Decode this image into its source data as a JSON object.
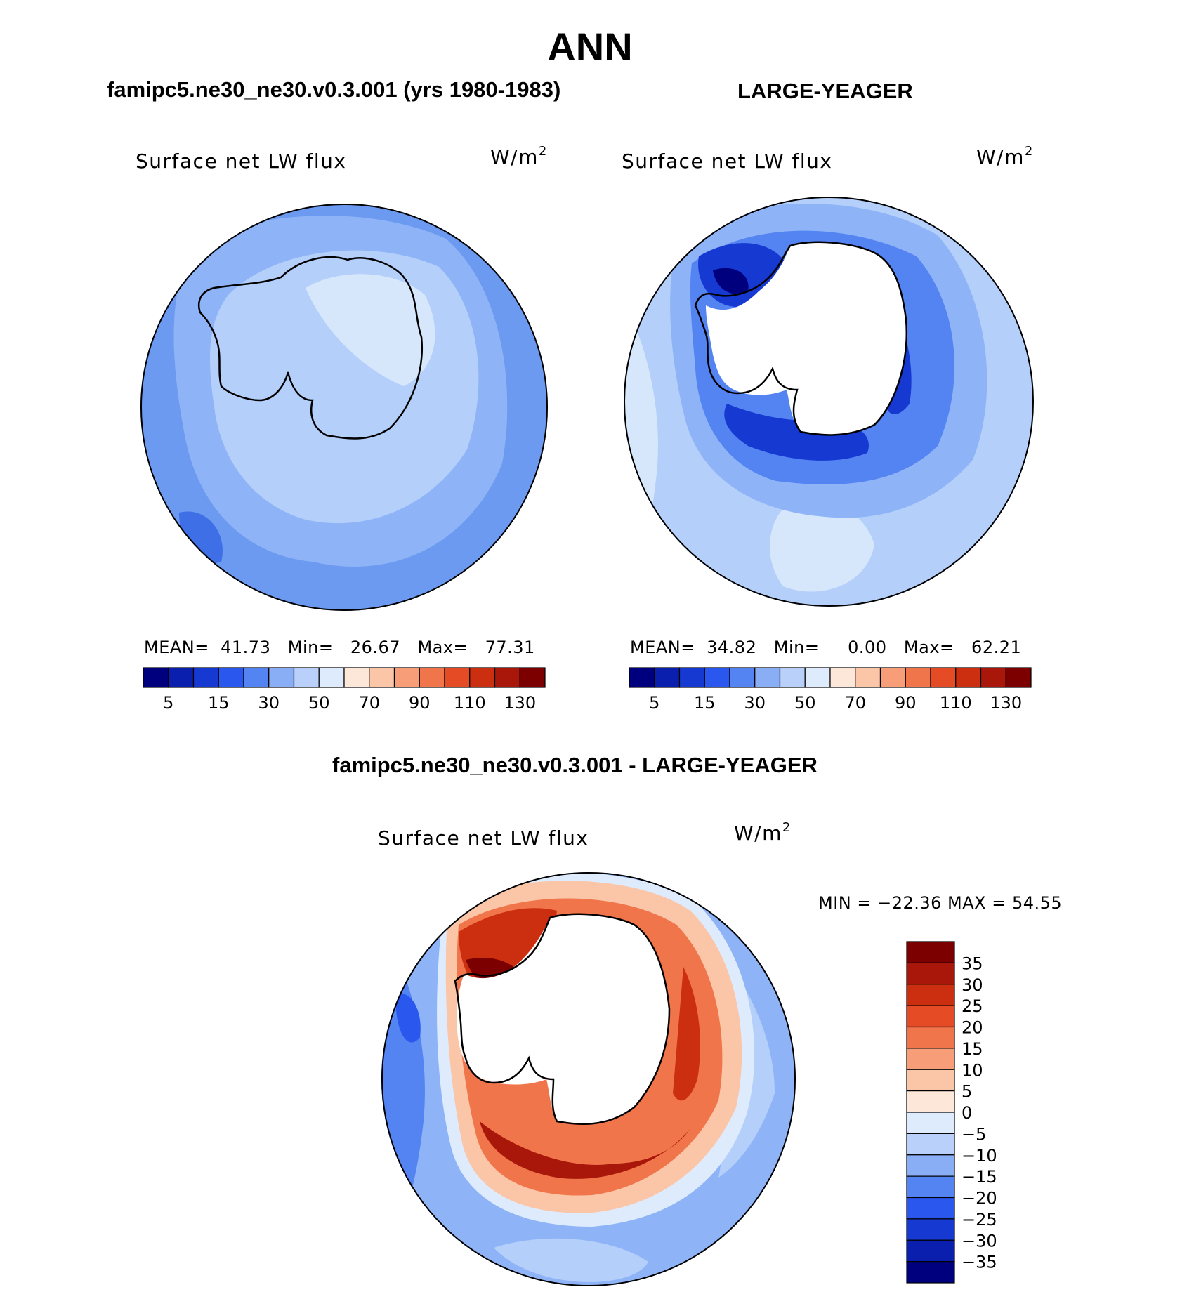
{
  "figure": {
    "title": "ANN",
    "colors": {
      "ocean_light": "#d6e7fc",
      "ocean_mid": "#b4cffa",
      "ocean_base": "#8eb4f7",
      "ocean_deep": "#6c9af0",
      "ocean_dark": "#3e6fe7",
      "coast": "#000000",
      "land_blank": "#ffffff"
    }
  },
  "top_left": {
    "header": "famipc5.ne30_ne30.v0.3.001 (yrs 1980-1983)",
    "plot_label": "Surface net LW flux",
    "units": "W/m",
    "units_exp": "2",
    "stats": {
      "mean_label": "MEAN=",
      "mean": "41.73",
      "min_label": "Min=",
      "min": "26.67",
      "max_label": "Max=",
      "max": "77.31"
    }
  },
  "top_right": {
    "header": "LARGE-YEAGER",
    "plot_label": "Surface net LW flux",
    "units": "W/m",
    "units_exp": "2",
    "stats": {
      "mean_label": "MEAN=",
      "mean": "34.82",
      "min_label": "Min=",
      "min": "0.00",
      "max_label": "Max=",
      "max": "62.21"
    }
  },
  "top_colorbar": {
    "colors": [
      "#00007f",
      "#0a1fae",
      "#1639d1",
      "#2a57ee",
      "#5483f2",
      "#8aaef6",
      "#b9d1fa",
      "#deebfd",
      "#fde7d8",
      "#fbc5a8",
      "#f79e78",
      "#f1754b",
      "#e54c26",
      "#cc2f10",
      "#a9170a",
      "#7c0000"
    ],
    "tick_labels": [
      "5",
      "15",
      "30",
      "50",
      "70",
      "90",
      "110",
      "130"
    ]
  },
  "bottom": {
    "header": "famipc5.ne30_ne30.v0.3.001 - LARGE-YEAGER",
    "plot_label": "Surface net LW flux",
    "units": "W/m",
    "units_exp": "2",
    "stats_text": "MIN = −22.36 MAX =  54.55"
  },
  "diff_colorbar": {
    "colors": [
      "#7c0000",
      "#a9170a",
      "#cc2f10",
      "#e54c26",
      "#f1754b",
      "#f79e78",
      "#fbc5a8",
      "#fde7d8",
      "#deebfd",
      "#b9d1fa",
      "#8aaef6",
      "#5483f2",
      "#2a57ee",
      "#1639d1",
      "#0a1fae",
      "#00007f"
    ],
    "tick_labels": [
      "35",
      "30",
      "25",
      "20",
      "15",
      "10",
      "5",
      "0",
      "−5",
      "−10",
      "−15",
      "−20",
      "−25",
      "−30",
      "−35"
    ]
  }
}
